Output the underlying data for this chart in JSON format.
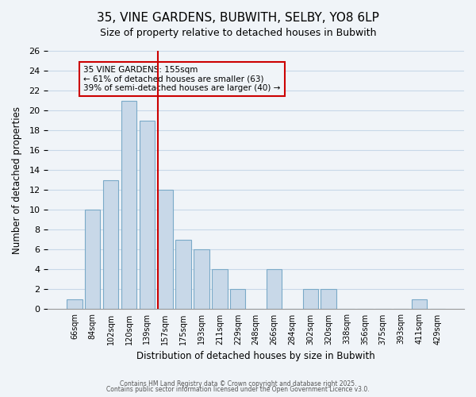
{
  "title_line1": "35, VINE GARDENS, BUBWITH, SELBY, YO8 6LP",
  "title_line2": "Size of property relative to detached houses in Bubwith",
  "xlabel": "Distribution of detached houses by size in Bubwith",
  "ylabel": "Number of detached properties",
  "bin_labels": [
    "66sqm",
    "84sqm",
    "102sqm",
    "120sqm",
    "139sqm",
    "157sqm",
    "175sqm",
    "193sqm",
    "211sqm",
    "229sqm",
    "248sqm",
    "266sqm",
    "284sqm",
    "302sqm",
    "320sqm",
    "338sqm",
    "356sqm",
    "375sqm",
    "393sqm",
    "411sqm",
    "429sqm"
  ],
  "bar_heights": [
    1,
    10,
    13,
    21,
    19,
    12,
    7,
    6,
    4,
    2,
    0,
    4,
    0,
    2,
    2,
    0,
    0,
    0,
    0,
    1,
    0
  ],
  "bar_color": "#c8d8e8",
  "bar_edge_color": "#7aaac8",
  "grid_color": "#c8d8e8",
  "vline_x_index": 5,
  "vline_color": "#cc0000",
  "annotation_title": "35 VINE GARDENS: 155sqm",
  "annotation_line1": "← 61% of detached houses are smaller (63)",
  "annotation_line2": "39% of semi-detached houses are larger (40) →",
  "annotation_box_edge": "#cc0000",
  "ylim": [
    0,
    26
  ],
  "yticks": [
    0,
    2,
    4,
    6,
    8,
    10,
    12,
    14,
    16,
    18,
    20,
    22,
    24,
    26
  ],
  "footnote1": "Contains HM Land Registry data © Crown copyright and database right 2025.",
  "footnote2": "Contains public sector information licensed under the Open Government Licence v3.0.",
  "background_color": "#f0f4f8"
}
